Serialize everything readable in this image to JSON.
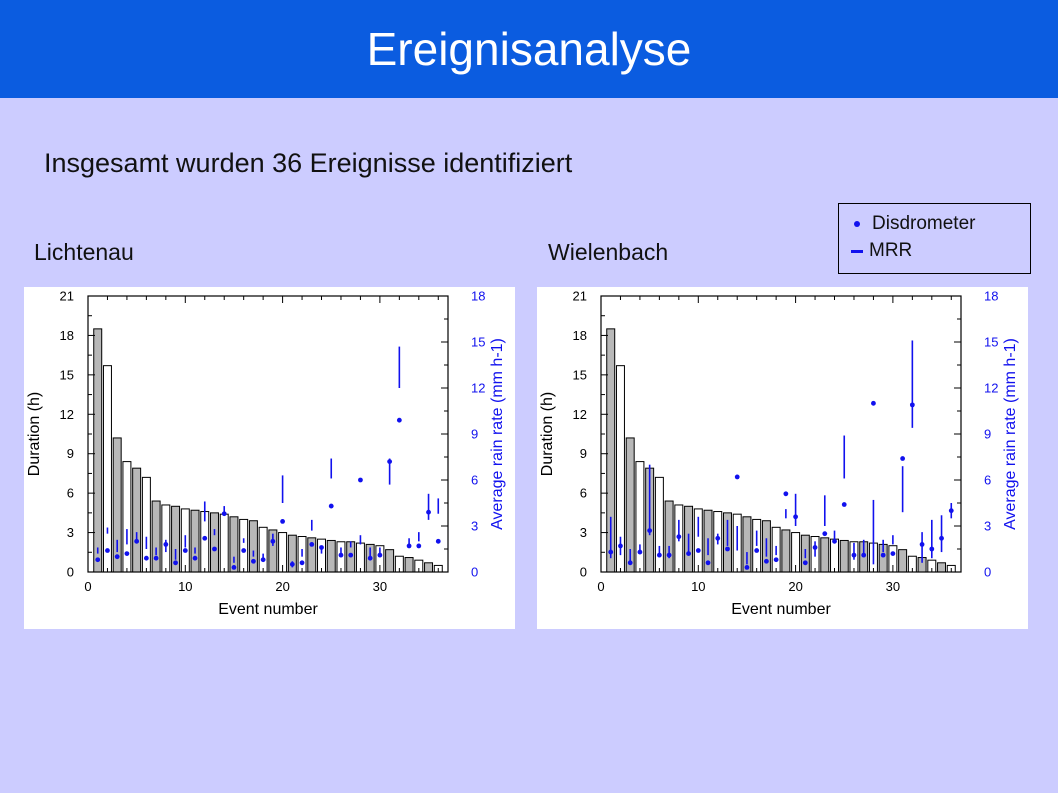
{
  "header": {
    "title": "Ereignisanalyse"
  },
  "subtitle": "Insgesamt wurden 36 Ereignisse identifiziert",
  "legend": {
    "items": [
      {
        "label": "Disdrometer",
        "marker": "dot",
        "color": "#1111ee"
      },
      {
        "label": "MRR",
        "marker": "bar",
        "color": "#1111ee"
      }
    ]
  },
  "colors": {
    "bar_filled": "#b8b8b8",
    "bar_empty": "#ffffff",
    "rain": "#1111ee",
    "accent": "#0b5ce0",
    "background": "#ccccff"
  },
  "chart_data": [
    {
      "type": "bar",
      "title": "Lichtenau",
      "xlabel": "Event number",
      "ylabel": "Duration (h)",
      "y2label": "Average rain rate (mm h-1)",
      "xlim": [
        0,
        37
      ],
      "ylim": [
        0,
        21
      ],
      "y2lim": [
        0,
        18
      ],
      "xticks": [
        0,
        10,
        20,
        30
      ],
      "yticks": [
        0,
        3,
        6,
        9,
        12,
        15,
        18,
        21
      ],
      "y2ticks": [
        0,
        3,
        6,
        9,
        12,
        15,
        18
      ],
      "x": [
        1,
        2,
        3,
        4,
        5,
        6,
        7,
        8,
        9,
        10,
        11,
        12,
        13,
        14,
        15,
        16,
        17,
        18,
        19,
        20,
        21,
        22,
        23,
        24,
        25,
        26,
        27,
        28,
        29,
        30,
        31,
        32,
        33,
        34,
        35,
        36
      ],
      "series": [
        {
          "name": "Duration (h)",
          "axis": "left",
          "values": [
            18.5,
            15.7,
            10.2,
            8.4,
            7.9,
            7.2,
            5.4,
            5.1,
            5.0,
            4.8,
            4.7,
            4.6,
            4.5,
            4.4,
            4.2,
            4.0,
            3.9,
            3.4,
            3.2,
            3.0,
            2.8,
            2.7,
            2.6,
            2.5,
            2.4,
            2.3,
            2.3,
            2.2,
            2.1,
            2.0,
            1.7,
            1.2,
            1.1,
            0.9,
            0.7,
            0.5
          ],
          "filled": [
            true,
            false,
            true,
            false,
            true,
            false,
            true,
            false,
            true,
            false,
            true,
            false,
            true,
            false,
            true,
            false,
            true,
            false,
            true,
            false,
            true,
            false,
            true,
            false,
            true,
            false,
            true,
            false,
            true,
            false,
            true,
            false,
            true,
            false,
            true,
            false
          ]
        },
        {
          "name": "Disdrometer",
          "axis": "right",
          "values": [
            0.8,
            1.4,
            1.0,
            1.2,
            2.0,
            0.9,
            0.9,
            1.8,
            0.6,
            1.4,
            0.9,
            2.2,
            1.5,
            3.8,
            0.3,
            1.4,
            0.7,
            0.8,
            2.0,
            3.3,
            0.5,
            0.6,
            1.8,
            1.6,
            4.3,
            1.1,
            1.1,
            6.0,
            0.9,
            1.1,
            7.2,
            9.9,
            1.7,
            1.7,
            3.9,
            2.0
          ]
        },
        {
          "name": "MRR",
          "axis": "right",
          "ranges": [
            [
              1.2,
              1.6
            ],
            [
              2.5,
              2.9
            ],
            [
              1.3,
              2.1
            ],
            [
              1.8,
              2.8
            ],
            [
              1.9,
              2.6
            ],
            [
              1.5,
              2.3
            ],
            [
              1.1,
              1.6
            ],
            [
              1.3,
              2.1
            ],
            [
              0.8,
              1.5
            ],
            [
              1.6,
              2.4
            ],
            [
              1.2,
              1.6
            ],
            [
              3.3,
              4.6
            ],
            [
              2.4,
              2.8
            ],
            [
              3.8,
              4.3
            ],
            [
              0.6,
              1.0
            ],
            [
              1.9,
              2.2
            ],
            [
              1.0,
              1.4
            ],
            [
              0.8,
              1.2
            ],
            [
              1.7,
              2.5
            ],
            [
              4.5,
              6.3
            ],
            [
              0.3,
              0.7
            ],
            [
              1.0,
              1.5
            ],
            [
              2.7,
              3.4
            ],
            [
              1.2,
              1.6
            ],
            [
              6.1,
              7.4
            ],
            [
              1.0,
              1.6
            ],
            [
              1.6,
              2.0
            ],
            [
              1.8,
              2.4
            ],
            [
              1.0,
              1.6
            ],
            [
              1.2,
              1.6
            ],
            [
              5.7,
              7.4
            ],
            [
              12.0,
              14.7
            ],
            [
              1.7,
              2.2
            ],
            [
              2.0,
              2.6
            ],
            [
              3.4,
              5.1
            ],
            [
              3.8,
              4.8
            ]
          ]
        }
      ]
    },
    {
      "type": "bar",
      "title": "Wielenbach",
      "xlabel": "Event number",
      "ylabel": "Duration (h)",
      "y2label": "Average rain rate (mm h-1)",
      "xlim": [
        0,
        37
      ],
      "ylim": [
        0,
        21
      ],
      "y2lim": [
        0,
        18
      ],
      "xticks": [
        0,
        10,
        20,
        30
      ],
      "yticks": [
        0,
        3,
        6,
        9,
        12,
        15,
        18,
        21
      ],
      "y2ticks": [
        0,
        3,
        6,
        9,
        12,
        15,
        18
      ],
      "x": [
        1,
        2,
        3,
        4,
        5,
        6,
        7,
        8,
        9,
        10,
        11,
        12,
        13,
        14,
        15,
        16,
        17,
        18,
        19,
        20,
        21,
        22,
        23,
        24,
        25,
        26,
        27,
        28,
        29,
        30,
        31,
        32,
        33,
        34,
        35,
        36
      ],
      "series": [
        {
          "name": "Duration (h)",
          "axis": "left",
          "values": [
            18.5,
            15.7,
            10.2,
            8.4,
            7.9,
            7.2,
            5.4,
            5.1,
            5.0,
            4.8,
            4.7,
            4.6,
            4.5,
            4.4,
            4.2,
            4.0,
            3.9,
            3.4,
            3.2,
            3.0,
            2.8,
            2.7,
            2.6,
            2.5,
            2.4,
            2.3,
            2.3,
            2.2,
            2.1,
            2.0,
            1.7,
            1.2,
            1.1,
            0.9,
            0.7,
            0.5
          ],
          "filled": [
            true,
            false,
            true,
            false,
            true,
            false,
            true,
            false,
            true,
            false,
            true,
            false,
            true,
            false,
            true,
            false,
            true,
            false,
            true,
            false,
            true,
            false,
            true,
            false,
            true,
            false,
            true,
            false,
            true,
            false,
            true,
            false,
            true,
            false,
            true,
            false
          ]
        },
        {
          "name": "Disdrometer",
          "axis": "right",
          "values": [
            1.3,
            1.7,
            0.6,
            1.3,
            2.7,
            1.1,
            1.1,
            2.3,
            1.2,
            1.4,
            0.6,
            2.2,
            1.5,
            6.2,
            0.3,
            1.4,
            0.7,
            0.8,
            5.1,
            3.6,
            0.6,
            1.6,
            2.5,
            2.0,
            4.4,
            1.1,
            1.1,
            11.0,
            1.1,
            1.2,
            7.4,
            10.9,
            1.8,
            1.5,
            2.2,
            4.0
          ]
        },
        {
          "name": "MRR",
          "axis": "right",
          "ranges": [
            [
              0.9,
              3.6
            ],
            [
              1.1,
              2.3
            ],
            [
              0.6,
              1.5
            ],
            [
              1.2,
              1.8
            ],
            [
              2.4,
              7.0
            ],
            [
              1.0,
              1.7
            ],
            [
              0.9,
              1.7
            ],
            [
              2.0,
              3.4
            ],
            [
              1.3,
              2.5
            ],
            [
              2.3,
              3.6
            ],
            [
              1.1,
              2.2
            ],
            [
              1.8,
              2.5
            ],
            [
              1.7,
              3.4
            ],
            [
              1.4,
              3.0
            ],
            [
              0.5,
              1.3
            ],
            [
              1.7,
              2.7
            ],
            [
              1.0,
              2.2
            ],
            [
              1.1,
              1.7
            ],
            [
              3.5,
              4.1
            ],
            [
              3.0,
              5.1
            ],
            [
              0.9,
              1.5
            ],
            [
              1.0,
              2.0
            ],
            [
              3.0,
              5.0
            ],
            [
              2.0,
              2.7
            ],
            [
              6.1,
              8.9
            ],
            [
              0.8,
              1.9
            ],
            [
              1.2,
              2.1
            ],
            [
              0.5,
              4.7
            ],
            [
              1.3,
              2.1
            ],
            [
              1.8,
              2.4
            ],
            [
              3.9,
              6.9
            ],
            [
              9.4,
              15.1
            ],
            [
              0.6,
              2.6
            ],
            [
              0.9,
              3.4
            ],
            [
              1.3,
              3.7
            ],
            [
              3.5,
              4.5
            ]
          ]
        }
      ]
    }
  ]
}
